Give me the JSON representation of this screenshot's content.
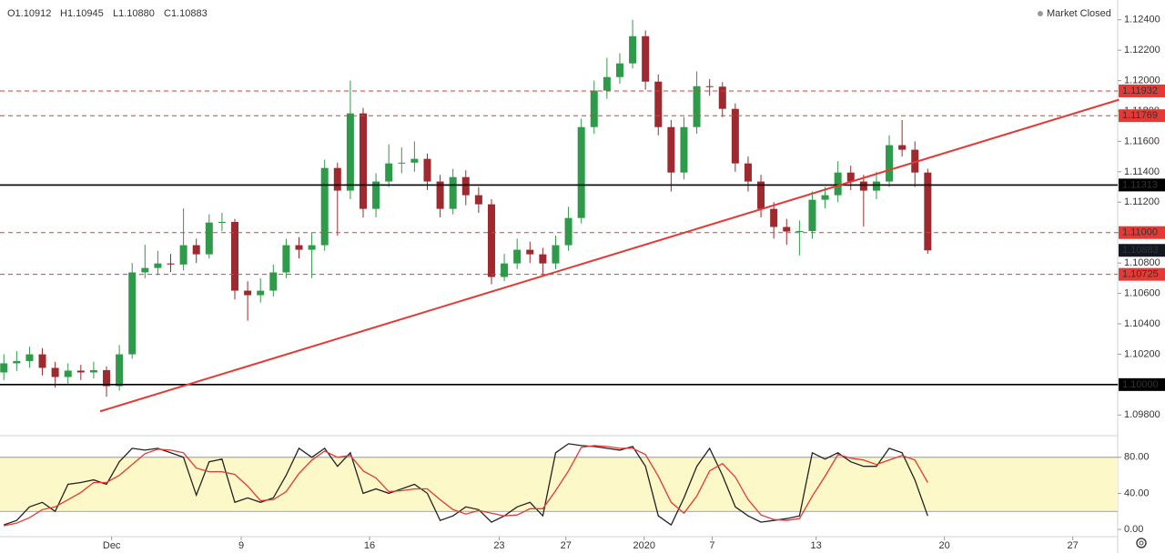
{
  "chart_data": {
    "type": "candlestick",
    "readout": [
      "O1.10912",
      "H1.10945",
      "L1.10880",
      "C1.10883"
    ],
    "status": "Market Closed",
    "x": [
      0,
      1,
      2,
      3,
      4,
      5,
      6,
      7,
      8,
      9,
      10,
      11,
      12,
      13,
      14,
      15,
      16,
      17,
      18,
      19,
      20,
      21,
      22,
      23,
      24,
      25,
      26,
      27,
      28,
      29,
      30,
      31,
      32,
      33,
      34,
      35,
      36,
      37,
      38,
      39,
      40,
      41,
      42,
      43,
      44,
      45,
      46,
      47,
      48,
      49,
      50,
      51,
      52,
      53,
      54,
      55,
      56,
      57,
      58,
      59,
      60,
      61,
      62,
      63,
      64,
      65,
      66,
      67,
      68,
      69,
      70,
      71,
      72
    ],
    "open": [
      1.1008,
      1.1014,
      1.10155,
      1.10199,
      1.1011,
      1.1005,
      1.10092,
      1.1008,
      1.10095,
      1.0999,
      1.10199,
      1.10738,
      1.10767,
      1.10797,
      1.1079,
      1.10917,
      1.10857,
      1.11066,
      1.1107,
      1.10618,
      1.10588,
      1.10618,
      1.10738,
      1.10917,
      1.10887,
      1.10917,
      1.11425,
      1.11276,
      1.11784,
      1.11156,
      1.11336,
      1.11455,
      1.1146,
      1.11485,
      1.11336,
      1.11156,
      1.11365,
      1.11246,
      1.11186,
      1.10708,
      1.10797,
      1.10887,
      1.10857,
      1.10797,
      1.10917,
      1.11096,
      1.11694,
      1.11934,
      1.12023,
      1.12113,
      1.12292,
      1.11993,
      1.11694,
      1.11395,
      1.11694,
      1.11963,
      1.1196,
      1.11814,
      1.11455,
      1.11336,
      1.11156,
      1.11037,
      1.11007,
      1.1101,
      1.11216,
      1.11246,
      1.11395,
      1.11336,
      1.11276,
      1.11336,
      1.11575,
      1.11545,
      1.11395
    ],
    "high": [
      1.102,
      1.1022,
      1.1025,
      1.1024,
      1.1015,
      1.1014,
      1.1013,
      1.1015,
      1.1012,
      1.1026,
      1.108,
      1.1092,
      1.1088,
      1.1086,
      1.1116,
      1.1096,
      1.1112,
      1.1113,
      1.1109,
      1.1068,
      1.107,
      1.1079,
      1.1096,
      1.1097,
      1.11,
      1.1148,
      1.1146,
      1.12,
      1.1182,
      1.1139,
      1.1158,
      1.1156,
      1.116,
      1.1152,
      1.1138,
      1.1142,
      1.1141,
      1.113,
      1.1122,
      1.1086,
      1.1096,
      1.1094,
      1.109,
      1.1098,
      1.1117,
      1.1175,
      1.12,
      1.1215,
      1.1218,
      1.124,
      1.1233,
      1.1204,
      1.1174,
      1.1176,
      1.1206,
      1.1201,
      1.1199,
      1.1185,
      1.115,
      1.1138,
      1.112,
      1.1109,
      1.1108,
      1.1127,
      1.113,
      1.1147,
      1.1144,
      1.1138,
      1.114,
      1.1164,
      1.1174,
      1.116,
      1.1142
    ],
    "low": [
      1.1003,
      1.1009,
      1.1011,
      1.1006,
      1.0998,
      1.1,
      1.1003,
      1.1004,
      1.0992,
      1.0996,
      1.1017,
      1.107,
      1.1072,
      1.1074,
      1.1075,
      1.108,
      1.1083,
      1.1101,
      1.1056,
      1.1042,
      1.1054,
      1.1058,
      1.107,
      1.1083,
      1.107,
      1.1088,
      1.1098,
      1.1122,
      1.111,
      1.111,
      1.113,
      1.1139,
      1.114,
      1.1128,
      1.111,
      1.1112,
      1.1118,
      1.1113,
      1.1066,
      1.1068,
      1.1076,
      1.108,
      1.1072,
      1.1076,
      1.1088,
      1.1106,
      1.1165,
      1.1188,
      1.1198,
      1.1208,
      1.1194,
      1.1164,
      1.1127,
      1.1135,
      1.1165,
      1.119,
      1.1176,
      1.114,
      1.1127,
      1.111,
      1.1096,
      1.1092,
      1.1085,
      1.1096,
      1.1116,
      1.112,
      1.1128,
      1.1104,
      1.1122,
      1.113,
      1.115,
      1.113,
      1.1086
    ],
    "close": [
      1.1014,
      1.10155,
      1.10199,
      1.1011,
      1.1005,
      1.10092,
      1.1008,
      1.10095,
      1.0999,
      1.10199,
      1.10738,
      1.10767,
      1.10797,
      1.1079,
      1.10917,
      1.10857,
      1.11066,
      1.1107,
      1.10618,
      1.10588,
      1.10618,
      1.10738,
      1.10917,
      1.10887,
      1.10917,
      1.11425,
      1.11276,
      1.11784,
      1.11156,
      1.11336,
      1.11455,
      1.1146,
      1.11485,
      1.11336,
      1.11156,
      1.11365,
      1.11246,
      1.11186,
      1.10708,
      1.10797,
      1.10887,
      1.10857,
      1.10797,
      1.10917,
      1.11096,
      1.11694,
      1.11934,
      1.12023,
      1.12113,
      1.12292,
      1.11993,
      1.11694,
      1.11395,
      1.11694,
      1.11963,
      1.1196,
      1.11814,
      1.11455,
      1.11336,
      1.11156,
      1.11037,
      1.11007,
      1.1101,
      1.11216,
      1.11246,
      1.11395,
      1.11336,
      1.11276,
      1.11336,
      1.11575,
      1.11545,
      1.11395,
      1.10883
    ],
    "up_color": "#2e9b4a",
    "down_color": "#9e2a2f",
    "xlim": [
      -0.3,
      86.8
    ],
    "xticks": [
      {
        "value": 8.4,
        "label": "Dec"
      },
      {
        "value": 18.5,
        "label": "9"
      },
      {
        "value": 28.5,
        "label": "16"
      },
      {
        "value": 38.6,
        "label": "23"
      },
      {
        "value": 43.8,
        "label": "27"
      },
      {
        "value": 49.9,
        "label": "2020"
      },
      {
        "value": 55.2,
        "label": "7"
      },
      {
        "value": 63.3,
        "label": "13"
      },
      {
        "value": 73.3,
        "label": "20"
      },
      {
        "value": 83.3,
        "label": "27"
      }
    ],
    "ylim": [
      1.0967,
      1.1253
    ],
    "yticks": [
      {
        "value": 1.098,
        "label": "1.09800"
      },
      {
        "value": 1.1,
        "label": "1.10000"
      },
      {
        "value": 1.102,
        "label": "1.10200"
      },
      {
        "value": 1.104,
        "label": "1.10400"
      },
      {
        "value": 1.106,
        "label": "1.10600"
      },
      {
        "value": 1.108,
        "label": "1.10800"
      },
      {
        "value": 1.11,
        "label": "1.11000"
      },
      {
        "value": 1.112,
        "label": "1.11200"
      },
      {
        "value": 1.114,
        "label": "1.11400"
      },
      {
        "value": 1.116,
        "label": "1.11600"
      },
      {
        "value": 1.118,
        "label": "1.11800"
      },
      {
        "value": 1.12,
        "label": "1.12000"
      },
      {
        "value": 1.122,
        "label": "1.12200"
      },
      {
        "value": 1.124,
        "label": "1.12400"
      }
    ],
    "levels": [
      {
        "value": 1.11932,
        "label": "1.11932",
        "color": "#e53935",
        "style": "dashed"
      },
      {
        "value": 1.11769,
        "label": "1.11769",
        "color": "#e53935",
        "style": "dashed"
      },
      {
        "value": 1.11313,
        "label": "1.11313",
        "color": "#000000",
        "style": "solid"
      },
      {
        "value": 1.11,
        "label": "1.11000",
        "color": "#e53935",
        "style": "dashed"
      },
      {
        "value": 1.10725,
        "label": "1.10725",
        "color": "#e53935",
        "style": "dashed"
      },
      {
        "value": 1.1,
        "label": "1.10000",
        "color": "#000000",
        "style": "solid"
      },
      {
        "value": 1.10883,
        "label": "1.10883",
        "color": "#131722",
        "style": "marker"
      }
    ],
    "trendline": {
      "x": [
        7.5,
        86.9
      ],
      "y": [
        1.09824,
        1.11874
      ],
      "color": "#e53935"
    },
    "stochastic": {
      "ylim": [
        -8,
        103
      ],
      "yticks": [
        {
          "value": 0,
          "label": "0.00"
        },
        {
          "value": 40,
          "label": "40.00"
        },
        {
          "value": 80,
          "label": "80.00"
        }
      ],
      "band": [
        20,
        80
      ],
      "band_color": "#fdf8c8",
      "series": [
        {
          "color": "#222222",
          "values": [
            5,
            10,
            25,
            30,
            20,
            50,
            52,
            55,
            50,
            75,
            90,
            88,
            90,
            85,
            80,
            38,
            75,
            78,
            30,
            35,
            30,
            35,
            60,
            90,
            80,
            90,
            70,
            85,
            40,
            45,
            40,
            45,
            50,
            40,
            10,
            15,
            25,
            22,
            8,
            15,
            25,
            30,
            15,
            85,
            95,
            93,
            92,
            90,
            88,
            92,
            70,
            15,
            5,
            35,
            70,
            90,
            60,
            25,
            15,
            8,
            10,
            12,
            15,
            85,
            78,
            85,
            75,
            70,
            70,
            90,
            85,
            55,
            15
          ]
        },
        {
          "color": "#e53935",
          "values": [
            4,
            7,
            13,
            22,
            25,
            33,
            41,
            52,
            52,
            60,
            72,
            84,
            89,
            88,
            85,
            68,
            64,
            64,
            61,
            48,
            32,
            33,
            42,
            62,
            77,
            87,
            80,
            82,
            65,
            57,
            42,
            43,
            45,
            45,
            33,
            22,
            17,
            21,
            18,
            15,
            16,
            23,
            23,
            43,
            65,
            91,
            93,
            92,
            90,
            90,
            83,
            59,
            30,
            18,
            37,
            65,
            73,
            58,
            33,
            16,
            11,
            10,
            12,
            37,
            59,
            83,
            79,
            77,
            72,
            77,
            82,
            77,
            52
          ]
        }
      ]
    }
  }
}
